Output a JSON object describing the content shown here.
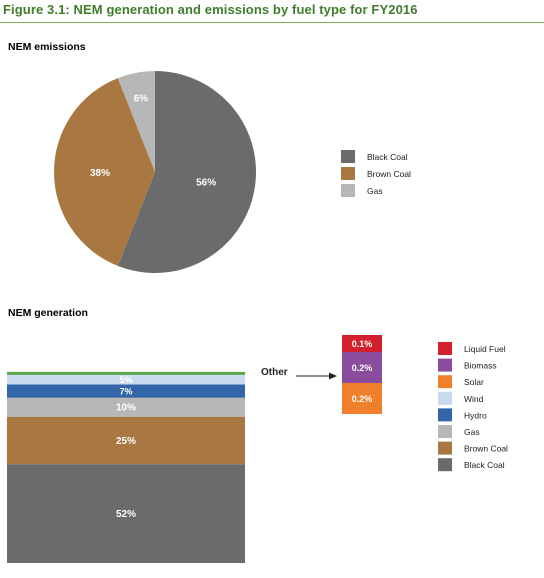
{
  "figure": {
    "title": "Figure 3.1: NEM generation and emissions by fuel type for FY2016"
  },
  "chart_data": [
    {
      "type": "pie",
      "title": "NEM emissions",
      "categories": [
        "Black Coal",
        "Brown Coal",
        "Gas"
      ],
      "values": [
        56,
        38,
        6
      ],
      "labels": [
        "56%",
        "38%",
        "6%"
      ],
      "colors": [
        "#6b6b6b",
        "#a97742",
        "#b7b7b7"
      ],
      "legend": {
        "placement": "right",
        "entries": [
          "Black Coal",
          "Brown Coal",
          "Gas"
        ]
      }
    },
    {
      "type": "bar",
      "subtype": "stacked",
      "title": "NEM generation",
      "categories": [
        "Black Coal",
        "Brown Coal",
        "Gas",
        "Hydro",
        "Wind",
        "Solar",
        "Biomass",
        "Liquid Fuel"
      ],
      "values": [
        52,
        25,
        10,
        7,
        5,
        0.2,
        0.2,
        0.1
      ],
      "labels": [
        "52%",
        "25%",
        "10%",
        "7%",
        "5%",
        "0.2%",
        "0.2%",
        "0.1%"
      ],
      "colors": [
        "#6b6b6b",
        "#a97742",
        "#b7b7b7",
        "#3366a8",
        "#c9d9ee",
        "#ef7f2b",
        "#8b4c9e",
        "#d2202e"
      ],
      "other": {
        "label": "Other",
        "categories": [
          "Solar",
          "Biomass",
          "Liquid Fuel"
        ],
        "values": [
          0.2,
          0.2,
          0.1
        ],
        "labels": [
          "0.2%",
          "0.2%",
          "0.1%"
        ]
      },
      "legend": {
        "placement": "right",
        "entries": [
          "Liquid Fuel",
          "Biomass",
          "Solar",
          "Wind",
          "Hydro",
          "Gas",
          "Brown Coal",
          "Black Coal"
        ],
        "colors": [
          "#d2202e",
          "#8b4c9e",
          "#ef7f2b",
          "#c9d9ee",
          "#3366a8",
          "#b7b7b7",
          "#a97742",
          "#6b6b6b"
        ]
      },
      "top_strip_color": "#5aa64a"
    }
  ]
}
